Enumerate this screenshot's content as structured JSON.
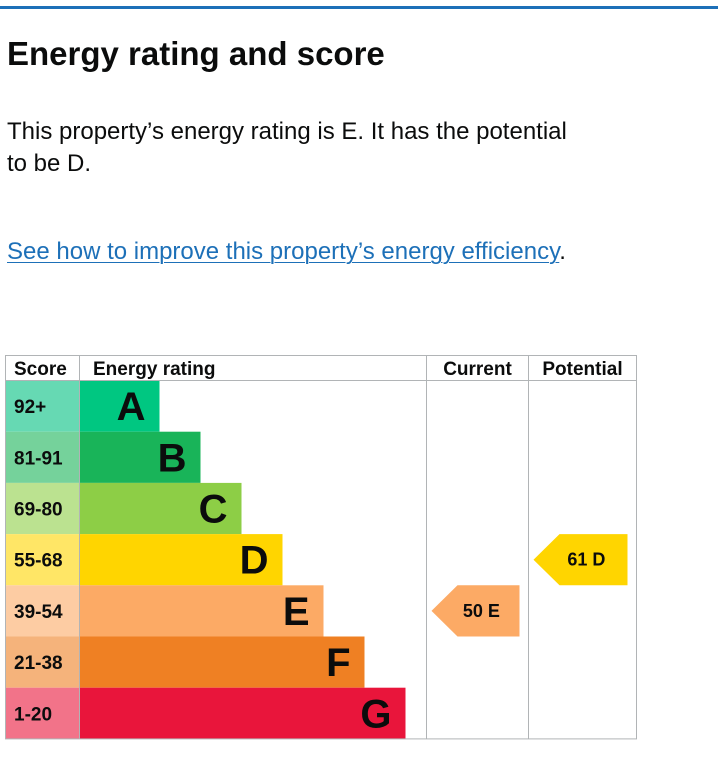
{
  "heading": "Energy rating and score",
  "summary": "This property’s energy rating is E. It has the potential to be D.",
  "improve_link": {
    "text": "See how to improve this property’s energy efficiency",
    "suffix": "."
  },
  "chart_data": {
    "type": "bar",
    "columns": [
      "Score",
      "Energy rating",
      "Current",
      "Potential"
    ],
    "bands": [
      {
        "score_range": "92+",
        "rating": "A",
        "color": "#00c781",
        "score_color": "#66d9b3"
      },
      {
        "score_range": "81-91",
        "rating": "B",
        "color": "#19b459",
        "score_color": "#75d29b"
      },
      {
        "score_range": "69-80",
        "rating": "C",
        "color": "#8dce46",
        "score_color": "#bbe290"
      },
      {
        "score_range": "55-68",
        "rating": "D",
        "color": "#ffd500",
        "score_color": "#ffe666"
      },
      {
        "score_range": "39-54",
        "rating": "E",
        "color": "#fcaa65",
        "score_color": "#fdcca3"
      },
      {
        "score_range": "21-38",
        "rating": "F",
        "color": "#ef8023",
        "score_color": "#f5b37b"
      },
      {
        "score_range": "1-20",
        "rating": "G",
        "color": "#e9153b",
        "score_color": "#f27389"
      }
    ],
    "current": {
      "score": 50,
      "rating": "E",
      "color": "#fcaa65"
    },
    "potential": {
      "score": 61,
      "rating": "D",
      "color": "#ffd500"
    }
  }
}
